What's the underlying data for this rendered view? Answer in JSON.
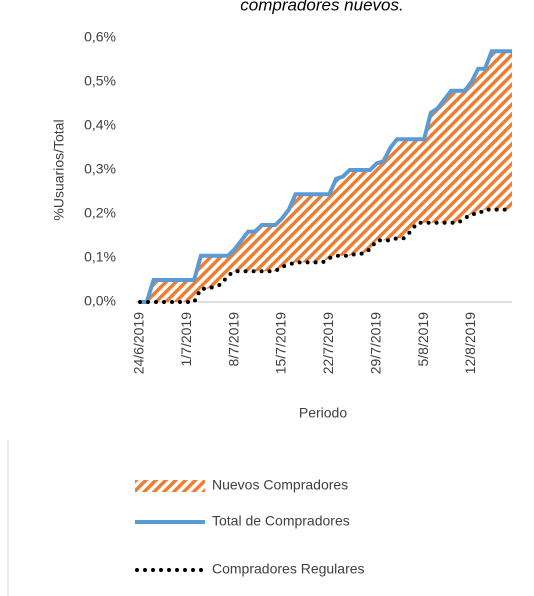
{
  "chart_data": {
    "type": "line",
    "title": "compradores nuevos.",
    "x_label": "Periodo",
    "y_label": "%Usuarios/Total",
    "categories": [
      "24/6/2019",
      null,
      null,
      null,
      null,
      null,
      null,
      "1/7/2019",
      null,
      null,
      null,
      null,
      null,
      null,
      "8/7/2019",
      null,
      null,
      null,
      null,
      null,
      null,
      "15/7/2019",
      null,
      null,
      null,
      null,
      null,
      null,
      "22/7/2019",
      null,
      null,
      null,
      null,
      null,
      null,
      "29/7/2019",
      null,
      null,
      null,
      null,
      null,
      null,
      "5/8/2019",
      null,
      null,
      null,
      null,
      null,
      null,
      "12/8/2019",
      null,
      null,
      null,
      null,
      null,
      null
    ],
    "series": [
      {
        "name": "Nuevos Compradores",
        "style": "hatch",
        "color": "#ed7d31",
        "values": [
          0,
          0,
          0.05,
          0.05,
          0.05,
          0.05,
          0.05,
          0.05,
          0.05,
          0.075,
          0.075,
          0.07,
          0.065,
          0.045,
          0.05,
          0.07,
          0.09,
          0.09,
          0.105,
          0.105,
          0.105,
          0.11,
          0.125,
          0.155,
          0.155,
          0.155,
          0.155,
          0.155,
          0.145,
          0.175,
          0.18,
          0.195,
          0.19,
          0.19,
          0.18,
          0.175,
          0.18,
          0.21,
          0.225,
          0.225,
          0.21,
          0.19,
          0.19,
          0.25,
          0.26,
          0.28,
          0.3,
          0.3,
          0.29,
          0.3,
          0.33,
          0.32,
          0.36,
          0.36,
          0.36,
          0.36
        ]
      },
      {
        "name": "Total de Compradores",
        "style": "line",
        "color": "#5b9bd5",
        "values": [
          0,
          0,
          0.05,
          0.05,
          0.05,
          0.05,
          0.05,
          0.05,
          0.05,
          0.105,
          0.105,
          0.105,
          0.105,
          0.105,
          0.12,
          0.14,
          0.16,
          0.16,
          0.175,
          0.175,
          0.175,
          0.19,
          0.21,
          0.245,
          0.245,
          0.245,
          0.245,
          0.245,
          0.245,
          0.28,
          0.285,
          0.3,
          0.3,
          0.3,
          0.3,
          0.315,
          0.32,
          0.35,
          0.37,
          0.37,
          0.37,
          0.37,
          0.37,
          0.43,
          0.44,
          0.46,
          0.48,
          0.48,
          0.48,
          0.5,
          0.53,
          0.53,
          0.57,
          0.57,
          0.57,
          0.57
        ]
      },
      {
        "name": "Compradores Regulares",
        "style": "dotted",
        "color": "#000000",
        "values": [
          0,
          0,
          0,
          0,
          0,
          0,
          0,
          0,
          0,
          0.03,
          0.03,
          0.035,
          0.04,
          0.06,
          0.07,
          0.07,
          0.07,
          0.07,
          0.07,
          0.07,
          0.07,
          0.08,
          0.085,
          0.09,
          0.09,
          0.09,
          0.09,
          0.09,
          0.1,
          0.105,
          0.105,
          0.105,
          0.11,
          0.11,
          0.12,
          0.14,
          0.14,
          0.14,
          0.145,
          0.145,
          0.16,
          0.18,
          0.18,
          0.18,
          0.18,
          0.18,
          0.18,
          0.18,
          0.19,
          0.2,
          0.2,
          0.21,
          0.21,
          0.21,
          0.21,
          0.21
        ]
      }
    ],
    "ylim": [
      0,
      0.6
    ],
    "yticks": [
      {
        "value": 0,
        "label": "0,0%"
      },
      {
        "value": 0.1,
        "label": "0,1%"
      },
      {
        "value": 0.2,
        "label": "0,2%"
      },
      {
        "value": 0.3,
        "label": "0,3%"
      },
      {
        "value": 0.4,
        "label": "0,4%"
      },
      {
        "value": 0.5,
        "label": "0,5%"
      },
      {
        "value": 0.6,
        "label": "0,6%"
      }
    ],
    "grid": false,
    "legend": "bottom"
  }
}
